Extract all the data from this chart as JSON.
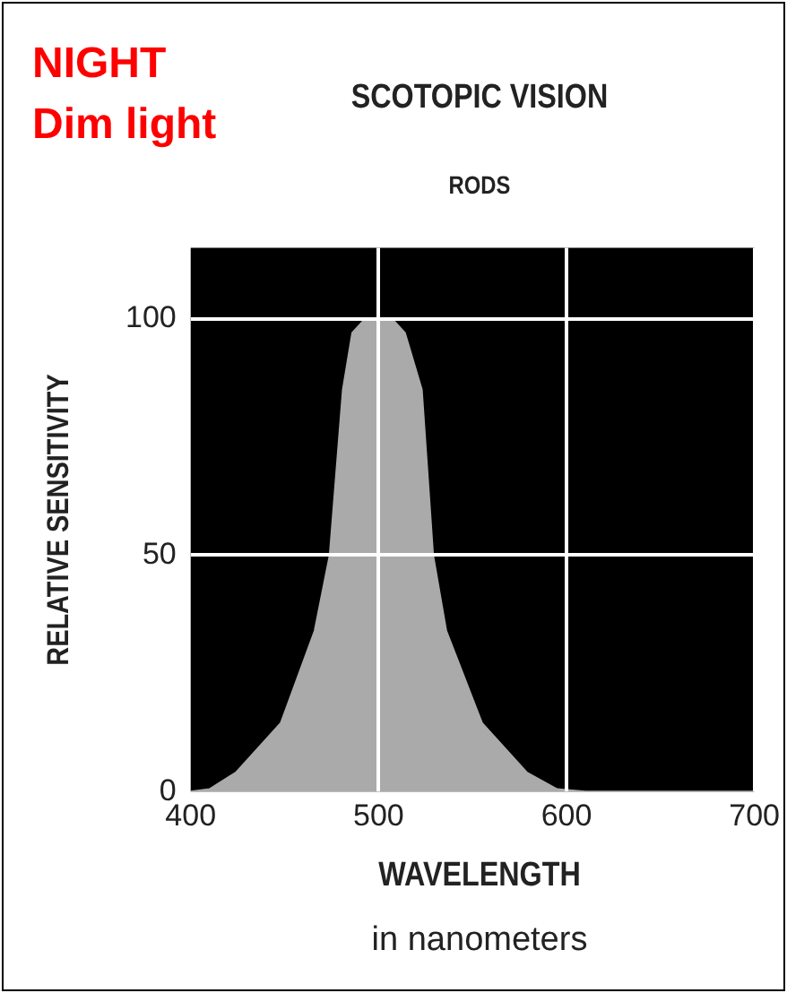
{
  "chart_data": {
    "type": "area",
    "title": "SCOTOPIC VISION",
    "subtitle": "RODS",
    "xlabel": "WAVELENGTH",
    "ylabel": "RELATIVE SENSITIVITY",
    "annotations": [
      "NIGHT",
      "Dim light",
      "in nanometers"
    ],
    "x": [
      400,
      410,
      424,
      448,
      466,
      474,
      481,
      486,
      493,
      500,
      507,
      514,
      523,
      529,
      536,
      555,
      579,
      595,
      610,
      700
    ],
    "series": [
      {
        "color": "#aaaaaa",
        "values": [
          0,
          0.5,
          4,
          14.5,
          34,
          50,
          85,
          97,
          100,
          100,
          100,
          97,
          85,
          50,
          34,
          14.5,
          4,
          0.5,
          0,
          0
        ]
      }
    ],
    "xlim": [
      400,
      700
    ],
    "xticks": [
      400,
      500,
      600,
      700
    ],
    "ylim": [
      0,
      115
    ],
    "yticks": [
      0,
      50,
      100
    ],
    "grid": true,
    "legend": false,
    "marker": "none"
  }
}
